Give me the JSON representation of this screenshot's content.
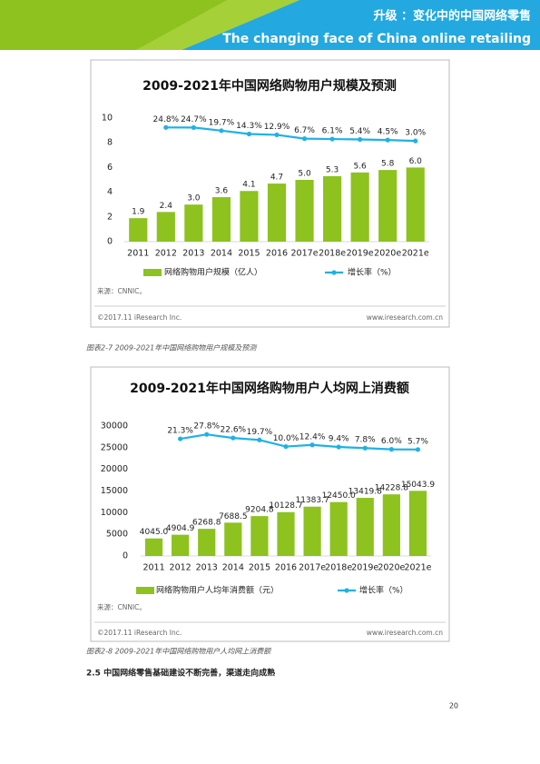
{
  "header": {
    "title": "升级 ：变化中的中国网络零售",
    "subtitle": "The changing face of China online retailing"
  },
  "chart_data": [
    {
      "type": "bar",
      "title": "2009-2021年中国网络购物用户规模及预测",
      "categories": [
        "2011",
        "2012",
        "2013",
        "2014",
        "2015",
        "2016",
        "2017e",
        "2018e",
        "2019e",
        "2020e",
        "2021e"
      ],
      "series": [
        {
          "name": "网络购物用户规模（亿人）",
          "color": "#8dc21f",
          "values": [
            1.9,
            2.4,
            3.0,
            3.6,
            4.1,
            4.7,
            5.0,
            5.3,
            5.6,
            5.8,
            6.0
          ],
          "value_labels": [
            "1.9",
            "2.4",
            "3.0",
            "3.6",
            "4.1",
            "4.7",
            "5.0",
            "5.3",
            "5.6",
            "5.8",
            "6.0"
          ]
        },
        {
          "name": "增长率（%）",
          "color": "#1fb1e6",
          "axis": "y2",
          "type": "line",
          "values": [
            null,
            24.8,
            24.7,
            19.7,
            14.3,
            12.9,
            6.7,
            6.1,
            5.4,
            4.5,
            3.0
          ],
          "value_labels": [
            null,
            "24.8%",
            "24.7%",
            "19.7%",
            "14.3%",
            "12.9%",
            "6.7%",
            "6.1%",
            "5.4%",
            "4.5%",
            "3.0%"
          ]
        }
      ],
      "ylim": [
        0,
        10
      ],
      "yticks": [
        0,
        2,
        4,
        6,
        8,
        10
      ],
      "y2lim": [
        -160,
        40
      ],
      "source": "来源：CNNIC。",
      "copyright": "©2017.11 iResearch Inc.",
      "website": "www.iresearch.com.cn",
      "caption": "图表2-7   2009-2021年中国网络购物用户规模及预测"
    },
    {
      "type": "bar",
      "title": "2009-2021年中国网络购物用户人均网上消费额",
      "categories": [
        "2011",
        "2012",
        "2013",
        "2014",
        "2015",
        "2016",
        "2017e",
        "2018e",
        "2019e",
        "2020e",
        "2021e"
      ],
      "series": [
        {
          "name": "网络购物用户人均年消费额（元）",
          "color": "#8dc21f",
          "values": [
            4045.0,
            4904.9,
            6268.8,
            7688.5,
            9204.8,
            10128.7,
            11383.7,
            12450.0,
            13419.8,
            14228.8,
            15043.9
          ],
          "value_labels": [
            "4045.0",
            "4904.9",
            "6268.8",
            "7688.5",
            "9204.8",
            "10128.7",
            "11383.7",
            "12450.0",
            "13419.8",
            "14228.8",
            "15043.9"
          ]
        },
        {
          "name": "增长率（%）",
          "color": "#1fb1e6",
          "axis": "y2",
          "type": "line",
          "values": [
            null,
            21.3,
            27.8,
            22.6,
            19.7,
            10.0,
            12.4,
            9.4,
            7.8,
            6.0,
            5.7
          ],
          "value_labels": [
            null,
            "21.3%",
            "27.8%",
            "22.6%",
            "19.7%",
            "10.0%",
            "12.4%",
            "9.4%",
            "7.8%",
            "6.0%",
            "5.7%"
          ]
        }
      ],
      "ylim": [
        0,
        30000
      ],
      "yticks": [
        0,
        5000,
        10000,
        15000,
        20000,
        25000,
        30000
      ],
      "y2lim": [
        -150,
        40
      ],
      "source": "来源：CNNIC。",
      "copyright": "©2017.11 iResearch Inc.",
      "website": "www.iresearch.com.cn",
      "caption": "图表2-8   2009-2021年中国网络购物用户人均网上消费额"
    }
  ],
  "section": {
    "heading": "2.5  中国网络零售基础建设不断完善，渠道走向成熟"
  },
  "page_number": "20"
}
